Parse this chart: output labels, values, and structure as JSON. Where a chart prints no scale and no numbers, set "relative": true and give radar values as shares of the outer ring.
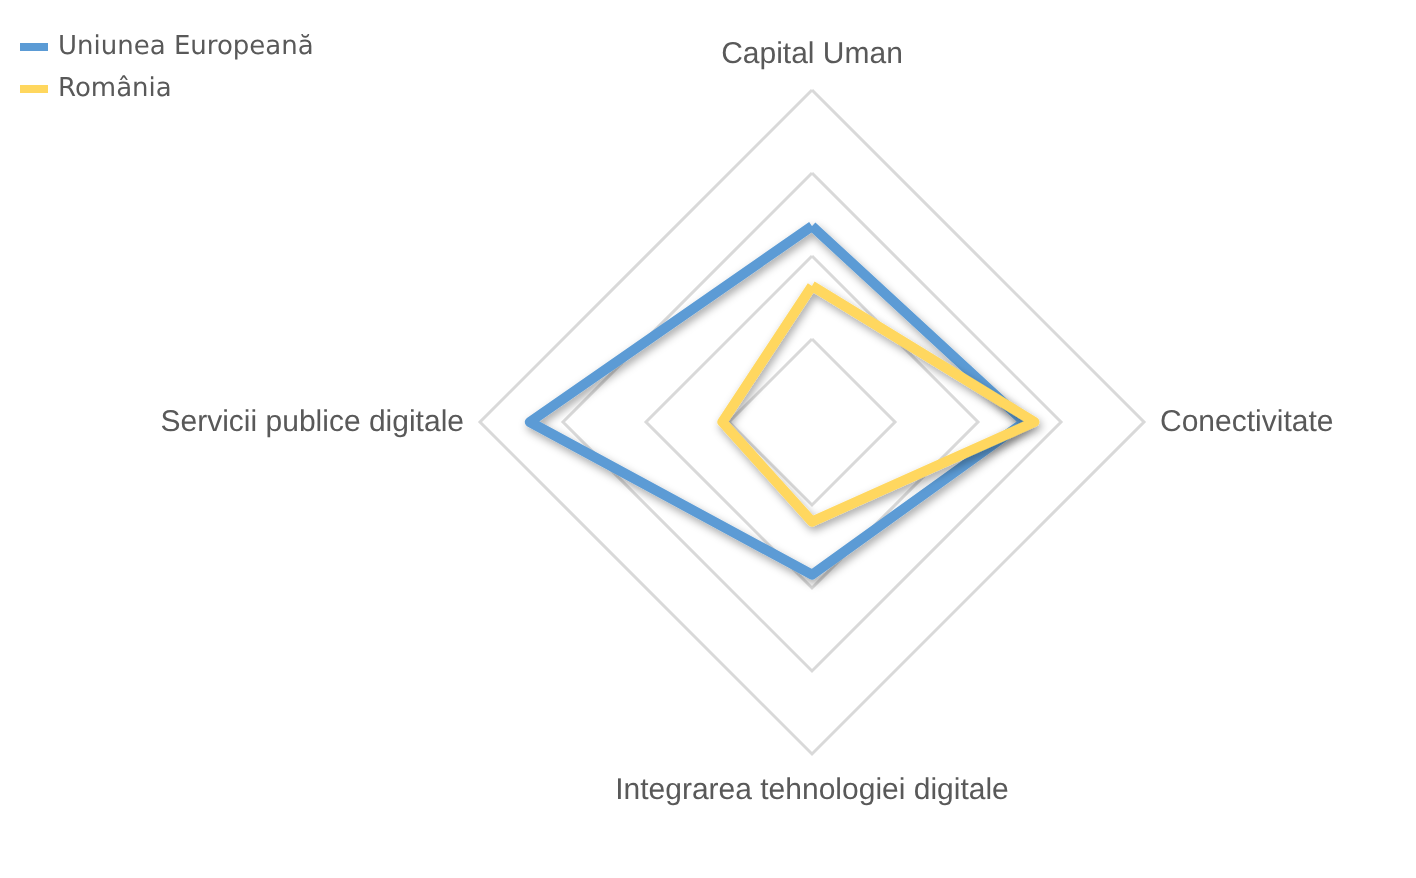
{
  "chart_data": {
    "type": "radar",
    "relative": true,
    "categories": [
      "Capital Uman",
      "Conectivitate",
      "Integrarea tehnologiei digitale",
      "Servicii publice digitale"
    ],
    "series": [
      {
        "name": "Uniunea Europeană",
        "color": "#5b9bd5",
        "values": [
          0.59,
          0.64,
          0.46,
          0.85
        ]
      },
      {
        "name": "România",
        "color": "#ffd75e",
        "values": [
          0.41,
          0.67,
          0.3,
          0.27
        ]
      }
    ],
    "legend": "top left",
    "grid": true,
    "marker": "none",
    "line_style": "solid"
  }
}
